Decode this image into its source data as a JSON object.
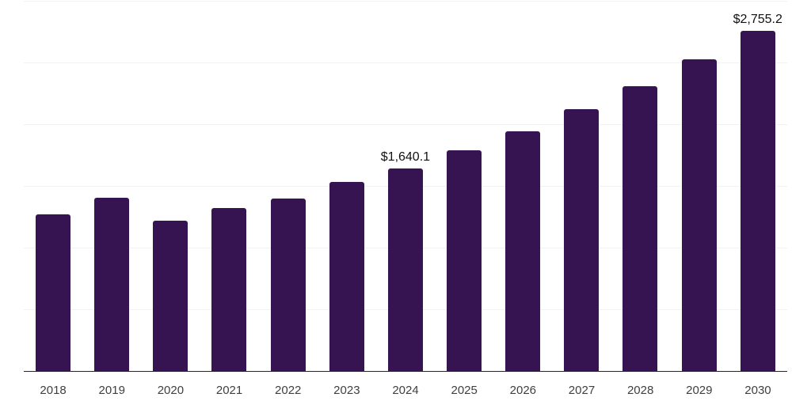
{
  "chart_data": {
    "type": "bar",
    "title": "",
    "xlabel": "",
    "ylabel": "",
    "categories": [
      "2018",
      "2019",
      "2020",
      "2021",
      "2022",
      "2023",
      "2024",
      "2025",
      "2026",
      "2027",
      "2028",
      "2029",
      "2030"
    ],
    "values": [
      1270,
      1405,
      1220,
      1320,
      1400,
      1535,
      1640.1,
      1790,
      1940,
      2120,
      2310,
      2525,
      2755.2
    ],
    "value_labels": [
      "",
      "",
      "",
      "",
      "",
      "",
      "$1,640.1",
      "",
      "",
      "",
      "",
      "",
      "$2,755.2"
    ],
    "ylim": [
      0,
      3000
    ],
    "gridline_values": [
      3000,
      2500,
      2000,
      1500,
      1000,
      500
    ],
    "gridline_interval": 500,
    "grid": true,
    "legend": "none",
    "y_tick_labels_visible": false
  },
  "colors": {
    "bar": "#361452",
    "axis_line": "#262626",
    "gridline": "#f2f2f2",
    "x_label_text": "#404040",
    "value_label_text": "#111111",
    "background": "#ffffff"
  }
}
